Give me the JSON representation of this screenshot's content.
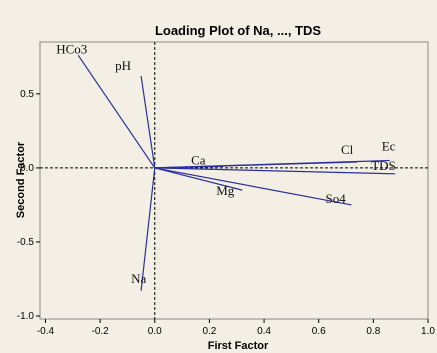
{
  "chart_data": {
    "type": "scatter",
    "title": "Loading Plot of Na, ..., TDS",
    "xlabel": "First Factor",
    "ylabel": "Second Factor",
    "xlim": [
      -0.42,
      1.0
    ],
    "ylim": [
      -1.02,
      0.85
    ],
    "xticks": [
      -0.4,
      -0.2,
      0.0,
      0.2,
      0.4,
      0.6,
      0.8,
      1.0
    ],
    "xtick_labels": [
      "-0.4",
      "-0.2",
      "0.0",
      "0.2",
      "0.4",
      "0.6",
      "0.8",
      "1.0"
    ],
    "yticks": [
      -1.0,
      -0.5,
      0.0,
      0.5
    ],
    "ytick_labels": [
      "-1.0",
      "-0.5",
      "0.0",
      "0.5"
    ],
    "reference_lines": {
      "x": 0,
      "y": 0
    },
    "grid": false,
    "points": [
      {
        "label": "HCo3",
        "x": -0.28,
        "y": 0.76
      },
      {
        "label": "pH",
        "x": -0.05,
        "y": 0.62
      },
      {
        "label": "Na",
        "x": -0.05,
        "y": -0.83
      },
      {
        "label": "Ca",
        "x": 0.25,
        "y": 0.01
      },
      {
        "label": "Mg",
        "x": 0.32,
        "y": -0.15
      },
      {
        "label": "Cl",
        "x": 0.74,
        "y": 0.04
      },
      {
        "label": "Ec",
        "x": 0.86,
        "y": 0.05
      },
      {
        "label": "TDS",
        "x": 0.88,
        "y": -0.04
      },
      {
        "label": "So4",
        "x": 0.72,
        "y": -0.25
      }
    ],
    "colors": {
      "line": "#2b2f9e",
      "background": "#f3efe4"
    }
  }
}
